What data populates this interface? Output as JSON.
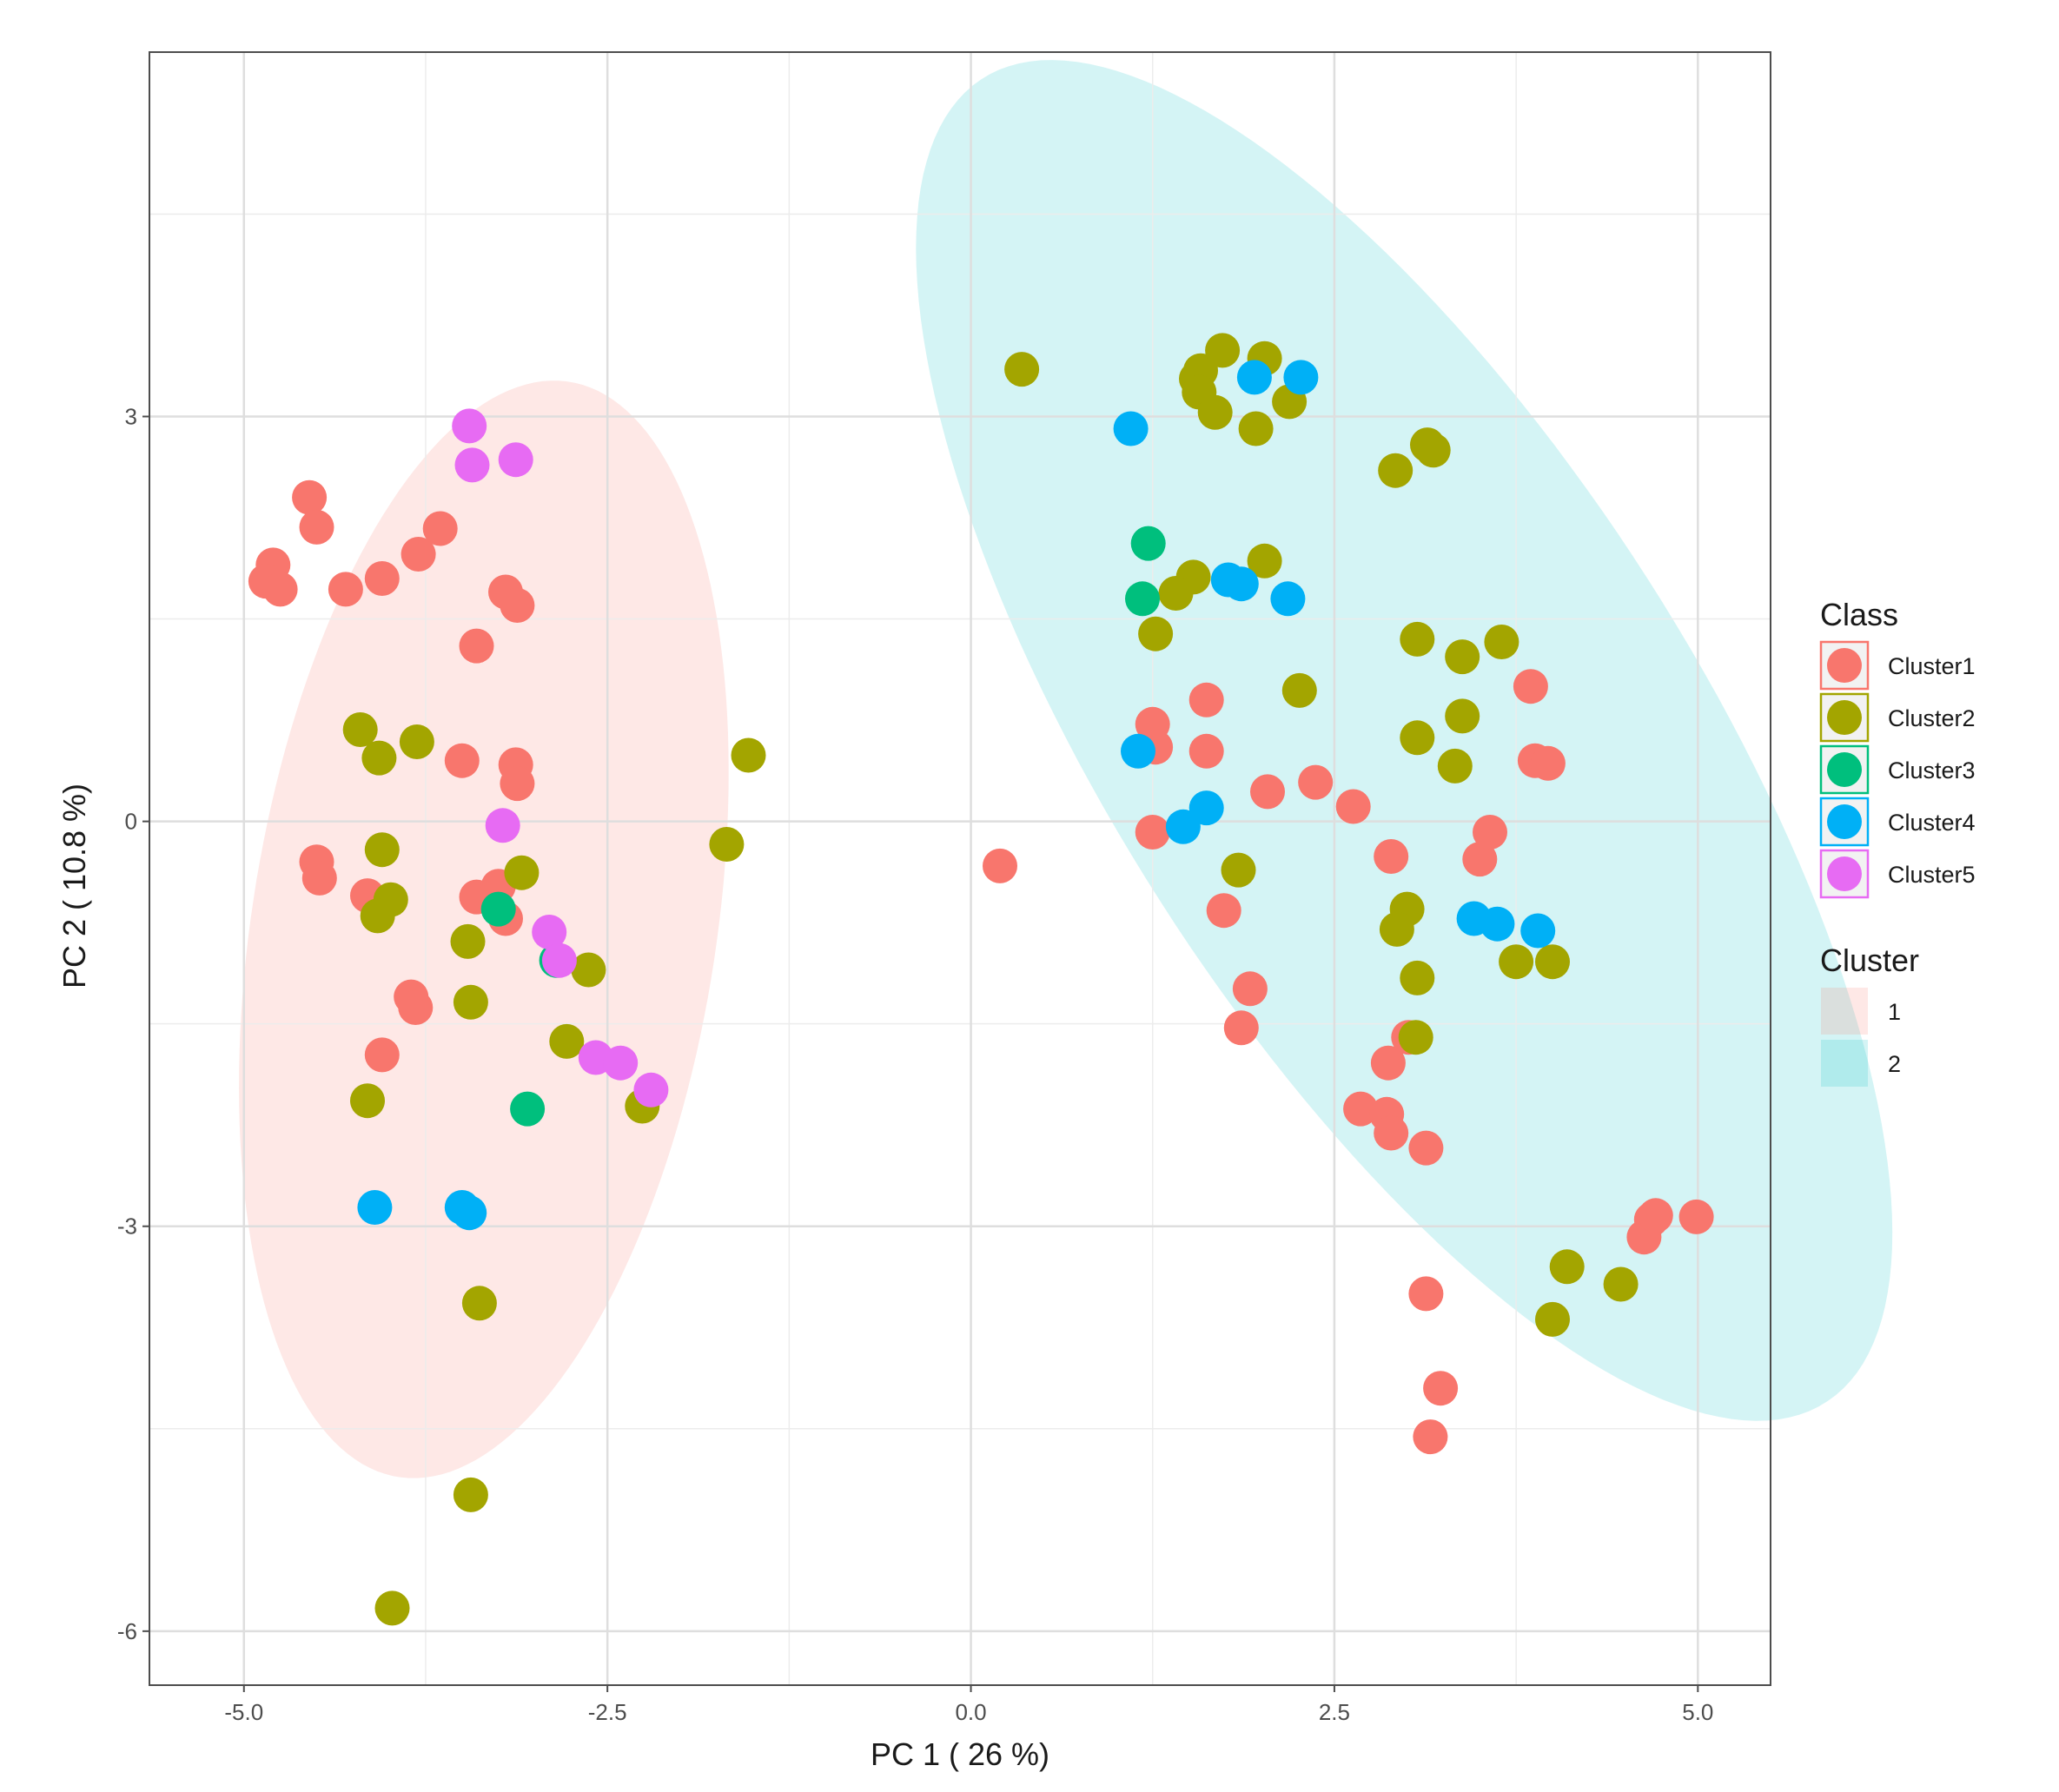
{
  "chart_data": {
    "type": "scatter",
    "title": "",
    "xlabel": "PC 1 ( 26 %)",
    "ylabel": "PC 2 ( 10.8 %)",
    "xlim": [
      -5.65,
      5.5
    ],
    "ylim": [
      -6.4,
      5.7
    ],
    "x_ticks": [
      {
        "value": -5.0,
        "label": "-5.0"
      },
      {
        "value": -2.5,
        "label": "-2.5"
      },
      {
        "value": 0.0,
        "label": "0.0"
      },
      {
        "value": 2.5,
        "label": "2.5"
      },
      {
        "value": 5.0,
        "label": "5.0"
      }
    ],
    "y_ticks": [
      {
        "value": 3,
        "label": "3"
      },
      {
        "value": 0,
        "label": "0"
      },
      {
        "value": -3,
        "label": "-3"
      },
      {
        "value": -6,
        "label": "-6"
      }
    ],
    "grid": true,
    "legends": [
      {
        "title": "Class",
        "position": "right",
        "entries": [
          {
            "label": "Cluster1",
            "color": "#F8766D"
          },
          {
            "label": "Cluster2",
            "color": "#A3A500"
          },
          {
            "label": "Cluster3",
            "color": "#00BF7D"
          },
          {
            "label": "Cluster4",
            "color": "#00B0F6"
          },
          {
            "label": "Cluster5",
            "color": "#E76BF3"
          }
        ]
      },
      {
        "title": "Cluster",
        "position": "right",
        "entries": [
          {
            "label": "1",
            "color": "#F8766D"
          },
          {
            "label": "2",
            "color": "#00BFC4"
          }
        ]
      }
    ],
    "ellipses": [
      {
        "cluster": "1",
        "color": "#F8766D",
        "center": [
          -3.35,
          -0.8
        ],
        "semi_major": 4.1,
        "semi_minor": 1.6,
        "angle_deg": 82
      },
      {
        "cluster": "2",
        "color": "#00BFC4",
        "center": [
          2.98,
          0.6
        ],
        "semi_major": 5.7,
        "semi_minor": 2.05,
        "angle_deg": -60
      }
    ],
    "series": [
      {
        "name": "Cluster1",
        "color": "#F8766D",
        "points": [
          [
            -4.55,
            2.4
          ],
          [
            -4.5,
            2.18
          ],
          [
            -4.8,
            1.9
          ],
          [
            -4.85,
            1.78
          ],
          [
            -4.75,
            1.72
          ],
          [
            -4.3,
            1.72
          ],
          [
            -4.05,
            1.8
          ],
          [
            -3.8,
            1.98
          ],
          [
            -3.65,
            2.17
          ],
          [
            -3.2,
            1.7
          ],
          [
            -3.12,
            1.6
          ],
          [
            -3.4,
            1.3
          ],
          [
            -3.5,
            0.45
          ],
          [
            -3.13,
            0.42
          ],
          [
            -3.12,
            0.28
          ],
          [
            -4.5,
            -0.3
          ],
          [
            -4.48,
            -0.42
          ],
          [
            -4.15,
            -0.55
          ],
          [
            -3.4,
            -0.56
          ],
          [
            -3.25,
            -0.48
          ],
          [
            -3.2,
            -0.72
          ],
          [
            -3.85,
            -1.3
          ],
          [
            -3.82,
            -1.38
          ],
          [
            -4.05,
            -1.73
          ],
          [
            1.25,
            0.72
          ],
          [
            1.62,
            0.9
          ],
          [
            1.62,
            0.52
          ],
          [
            1.27,
            0.55
          ],
          [
            1.25,
            -0.08
          ],
          [
            2.04,
            0.22
          ],
          [
            2.37,
            0.29
          ],
          [
            2.63,
            0.11
          ],
          [
            2.89,
            -0.26
          ],
          [
            1.74,
            -0.66
          ],
          [
            1.92,
            -1.24
          ],
          [
            1.86,
            -1.53
          ],
          [
            3.5,
            -0.28
          ],
          [
            3.57,
            -0.08
          ],
          [
            3.85,
            1.0
          ],
          [
            3.88,
            0.45
          ],
          [
            3.97,
            0.43
          ],
          [
            3.01,
            -1.6
          ],
          [
            2.87,
            -1.79
          ],
          [
            2.68,
            -2.13
          ],
          [
            2.86,
            -2.17
          ],
          [
            2.89,
            -2.31
          ],
          [
            3.13,
            -2.42
          ],
          [
            3.13,
            -3.5
          ],
          [
            3.23,
            -4.2
          ],
          [
            3.16,
            -4.56
          ],
          [
            4.63,
            -3.08
          ],
          [
            4.68,
            -2.95
          ],
          [
            4.71,
            -2.92
          ],
          [
            4.99,
            -2.93
          ],
          [
            0.2,
            -0.33
          ]
        ]
      },
      {
        "name": "Cluster2",
        "color": "#A3A500",
        "points": [
          [
            -4.2,
            0.68
          ],
          [
            -4.07,
            0.47
          ],
          [
            -3.81,
            0.59
          ],
          [
            -4.05,
            -0.21
          ],
          [
            -3.99,
            -0.58
          ],
          [
            -4.08,
            -0.7
          ],
          [
            -3.46,
            -0.89
          ],
          [
            -3.09,
            -0.38
          ],
          [
            -3.44,
            -1.34
          ],
          [
            -2.63,
            -1.1
          ],
          [
            -2.78,
            -1.63
          ],
          [
            -4.15,
            -2.07
          ],
          [
            -2.26,
            -2.11
          ],
          [
            -3.38,
            -3.57
          ],
          [
            -3.44,
            -4.99
          ],
          [
            -3.98,
            -5.83
          ],
          [
            -1.68,
            -0.17
          ],
          [
            -1.53,
            0.49
          ],
          [
            0.35,
            3.35
          ],
          [
            1.55,
            3.28
          ],
          [
            1.58,
            3.34
          ],
          [
            1.57,
            3.18
          ],
          [
            1.73,
            3.49
          ],
          [
            2.02,
            3.43
          ],
          [
            2.19,
            3.11
          ],
          [
            1.68,
            3.03
          ],
          [
            1.96,
            2.91
          ],
          [
            2.02,
            1.93
          ],
          [
            1.53,
            1.81
          ],
          [
            1.41,
            1.69
          ],
          [
            1.27,
            1.39
          ],
          [
            2.26,
            0.97
          ],
          [
            1.84,
            -0.36
          ],
          [
            2.92,
            2.6
          ],
          [
            3.14,
            2.79
          ],
          [
            3.18,
            2.75
          ],
          [
            3.07,
            1.35
          ],
          [
            3.38,
            1.22
          ],
          [
            3.65,
            1.33
          ],
          [
            3.38,
            0.78
          ],
          [
            3.07,
            0.62
          ],
          [
            3.33,
            0.41
          ],
          [
            3.0,
            -0.65
          ],
          [
            2.93,
            -0.8
          ],
          [
            3.07,
            -1.16
          ],
          [
            3.06,
            -1.6
          ],
          [
            3.75,
            -1.04
          ],
          [
            4.0,
            -1.04
          ],
          [
            4.1,
            -3.3
          ],
          [
            4.47,
            -3.43
          ],
          [
            4.0,
            -3.69
          ]
        ]
      },
      {
        "name": "Cluster3",
        "color": "#00BF7D",
        "points": [
          [
            -3.25,
            -0.65
          ],
          [
            -2.85,
            -1.03
          ],
          [
            -3.05,
            -2.13
          ],
          [
            1.22,
            2.06
          ],
          [
            1.18,
            1.65
          ]
        ]
      },
      {
        "name": "Cluster4",
        "color": "#00B0F6",
        "points": [
          [
            -4.1,
            -2.86
          ],
          [
            -3.5,
            -2.86
          ],
          [
            -3.45,
            -2.9
          ],
          [
            1.1,
            2.91
          ],
          [
            1.95,
            3.29
          ],
          [
            2.27,
            3.29
          ],
          [
            1.77,
            1.79
          ],
          [
            1.86,
            1.76
          ],
          [
            2.18,
            1.65
          ],
          [
            1.15,
            0.52
          ],
          [
            1.62,
            0.1
          ],
          [
            1.46,
            -0.04
          ],
          [
            3.46,
            -0.72
          ],
          [
            3.62,
            -0.76
          ],
          [
            3.9,
            -0.81
          ]
        ]
      },
      {
        "name": "Cluster5",
        "color": "#E76BF3",
        "points": [
          [
            -3.45,
            2.93
          ],
          [
            -3.43,
            2.64
          ],
          [
            -3.13,
            2.68
          ],
          [
            -3.22,
            -0.03
          ],
          [
            -2.9,
            -0.82
          ],
          [
            -2.83,
            -1.03
          ],
          [
            -2.58,
            -1.75
          ],
          [
            -2.41,
            -1.79
          ],
          [
            -2.2,
            -1.99
          ]
        ]
      }
    ]
  }
}
